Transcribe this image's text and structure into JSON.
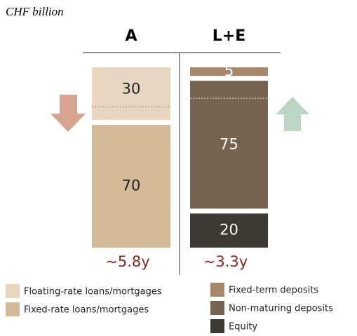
{
  "chart_data": {
    "type": "balance_sheet",
    "title": "CHF billion",
    "columns": [
      {
        "name": "A",
        "duration": "~5.8y",
        "segments": [
          {
            "name": "Floating-rate loans/mortgages",
            "value": 30,
            "color": "#e9d6c1"
          },
          {
            "name": "Fixed-rate loans/mortgages",
            "value": 70,
            "color": "#d5ba97"
          }
        ]
      },
      {
        "name": "L+E",
        "duration": "~3.3y",
        "segments": [
          {
            "name": "Fixed-term deposits",
            "value": 5,
            "color": "#a8866a"
          },
          {
            "name": "Non-maturing deposits",
            "value": 75,
            "color": "#76624f"
          },
          {
            "name": "Equity",
            "value": 20,
            "color": "#3e3a32"
          }
        ]
      }
    ]
  }
}
